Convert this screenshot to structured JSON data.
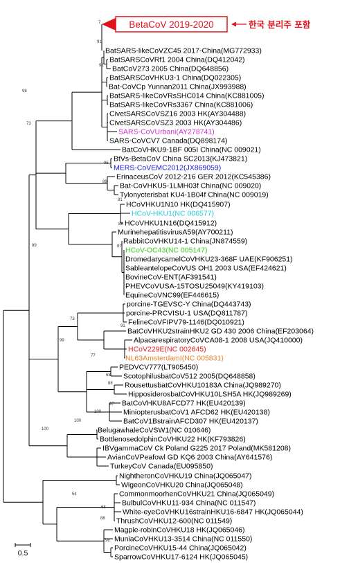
{
  "highlight": {
    "label": "BetaCoV 2019-2020",
    "note": "한국 분리주 포함",
    "color": "#e0121b"
  },
  "scale_bar": {
    "label": "0.5"
  },
  "bootstrap_values": [
    "7",
    "91",
    "92",
    "98",
    "73",
    "89",
    "95",
    "99",
    "81",
    "88",
    "87",
    "73",
    "99",
    "91",
    "77",
    "68",
    "88",
    "97",
    "100",
    "100",
    "100",
    "54",
    "68",
    "88",
    "96"
  ],
  "leaves": [
    {
      "label": "BatSARS-likeCoVZC45 2017-China(MG772933)",
      "color": "#000000"
    },
    {
      "label": "BatSARSCoVRf1 2004 China(DQ412042)",
      "color": "#000000"
    },
    {
      "label": "BatCoV273 2005 China(DQ648856)",
      "color": "#000000"
    },
    {
      "label": "BatSARSCoVHKU3-1 China(DQ022305)",
      "color": "#000000"
    },
    {
      "label": "Bat-CoVCp Yunnan2011  China(JX993988)",
      "color": "#000000"
    },
    {
      "label": "BatSARS-likeCoVRsSHC014 China(KC881005)",
      "color": "#000000"
    },
    {
      "label": "BatSARS-likeCoVRs3367 China(KC881006)",
      "color": "#000000"
    },
    {
      "label": "CivetSARSCoVSZ16 2003 HK(AY304488)",
      "color": "#000000"
    },
    {
      "label": "CivetSARSCoVSZ3 2003 HK(AY304486)",
      "color": "#000000"
    },
    {
      "label": "SARS-CoVUrbani(AY278741)",
      "color": "#cc33cc"
    },
    {
      "label": "SARS-CoVCV7 Canada(DQ898174)",
      "color": "#000000"
    },
    {
      "label": "BatCoVHKU9-1BF 005I China(NC 009021)",
      "color": "#000000"
    },
    {
      "label": "BtVs-BetaCoV China SC2013(KJ473821)",
      "color": "#000000"
    },
    {
      "label": "MERS-CoVEMC2012(JX869059)",
      "color": "#1a1ad0"
    },
    {
      "label": "ErinaceusCoV 2012-216 GER 2012(KC545386)",
      "color": "#000000"
    },
    {
      "label": "Bat-CoVHKU5-1LMH03f China(NC 009020)",
      "color": "#000000"
    },
    {
      "label": "Tylonycterisbat  KU4-1B04f China(NC 009019)",
      "color": "#000000"
    },
    {
      "label": "HCoVHKU1N10 HK(DQ415907)",
      "color": "#000000"
    },
    {
      "label": "HCoV-HKU1(NC 006577)",
      "color": "#22c8dc"
    },
    {
      "label": "HCoVHKU1N16(DQ415912)",
      "color": "#000000"
    },
    {
      "label": "MurinehepatitisvirusA59(AY700211)",
      "color": "#000000"
    },
    {
      "label": "RabbitCoVHKU14-1 China(JN874559)",
      "color": "#000000"
    },
    {
      "label": "HCoV-OC43(NC 005147)",
      "color": "#3ccc1e"
    },
    {
      "label": "DromedarycamelCoVHKU23-368F UAE(KF906251)",
      "color": "#000000"
    },
    {
      "label": "SableantelopeCoVUS OH1 2003 USA(EF424621)",
      "color": "#000000"
    },
    {
      "label": "BovineCoV-ENT(AF391541)",
      "color": "#000000"
    },
    {
      "label": "PHEVCoVUSA-15TOSU25049(KY419103)",
      "color": "#000000"
    },
    {
      "label": "EquineCoVNC99(EF446615)",
      "color": "#000000"
    },
    {
      "label": "porcine-TGEVSC-Y China(DQ443743)",
      "color": "#000000"
    },
    {
      "label": "porcine-PRCVISU-1 USA(DQ811787)",
      "color": "#000000"
    },
    {
      "label": "FelineCoVFIPV79-1146(DQ010921)",
      "color": "#000000"
    },
    {
      "label": "BatCoVHKU2strainHKU2 GD 430 2006 China(EF203064)",
      "color": "#000000"
    },
    {
      "label": "AlpacarespiratoryCoVCA08-1 2008 USA(JQ410000)",
      "color": "#000000"
    },
    {
      "label": "HCoV229E(NC 002645)",
      "color": "#e02020"
    },
    {
      "label": "NL63AmsterdamI(NC 005831)",
      "color": "#e8842a"
    },
    {
      "label": "PEDVCV777(LT905450)",
      "color": "#000000"
    },
    {
      "label": "ScotophilusbatCoV512 2005(DQ648858)",
      "color": "#000000"
    },
    {
      "label": "RousettusbatCoVHKU10183A China(JQ989270)",
      "color": "#000000"
    },
    {
      "label": "HipposiderosbatCoVHKU10LSH5A HK(JQ989269)",
      "color": "#000000"
    },
    {
      "label": "BatCoVHKU8AFCD77 HK(EU420139)",
      "color": "#000000"
    },
    {
      "label": "MiniopterusbatCoV1 AFCD62 HK(EU420138)",
      "color": "#000000"
    },
    {
      "label": "BatCoV1BstrainAFCD307 HK(EU420137)",
      "color": "#000000"
    },
    {
      "label": "BelugawhaleCoVSW1(NC 010646)",
      "color": "#000000"
    },
    {
      "label": "BottlenosedolphinCoVHKU22 HK(KF793826)",
      "color": "#000000"
    },
    {
      "label": "IBVgammaCoV Ck Poland G225 2017 Poland(MK581208)",
      "color": "#000000"
    },
    {
      "label": "AvianCoVPeafowl GD KQ6 2003 China(AY641576)",
      "color": "#000000"
    },
    {
      "label": "TurkeyCoV  Canada(EU095850)",
      "color": "#000000"
    },
    {
      "label": "NightheronCoVHKU19 China(JQ065047)",
      "color": "#000000"
    },
    {
      "label": "WigeonCoVHKU20 China(JQ065048)",
      "color": "#000000"
    },
    {
      "label": "CommonmoorhenCoVHKU21 China(JQ065049)",
      "color": "#000000"
    },
    {
      "label": "BulbulCoVHKU11-934 China(NC 011547)",
      "color": "#000000"
    },
    {
      "label": "White-eyeCoVHKU16strainHKU16-6847 HK(JQ065044)",
      "color": "#000000"
    },
    {
      "label": "ThrushCoVHKU12-600(NC 011549)",
      "color": "#000000"
    },
    {
      "label": "Magpie-robinCoVHKU18 HK(JQ065046)",
      "color": "#000000"
    },
    {
      "label": "MuniaCoVHKU13-3514 China(NC 011550)",
      "color": "#000000"
    },
    {
      "label": "PorcineCoVHKU15-44 China(JQ065042)",
      "color": "#000000"
    },
    {
      "label": "SparrowCoVHKU17-6124 HK(JQ065045)",
      "color": "#000000"
    }
  ]
}
